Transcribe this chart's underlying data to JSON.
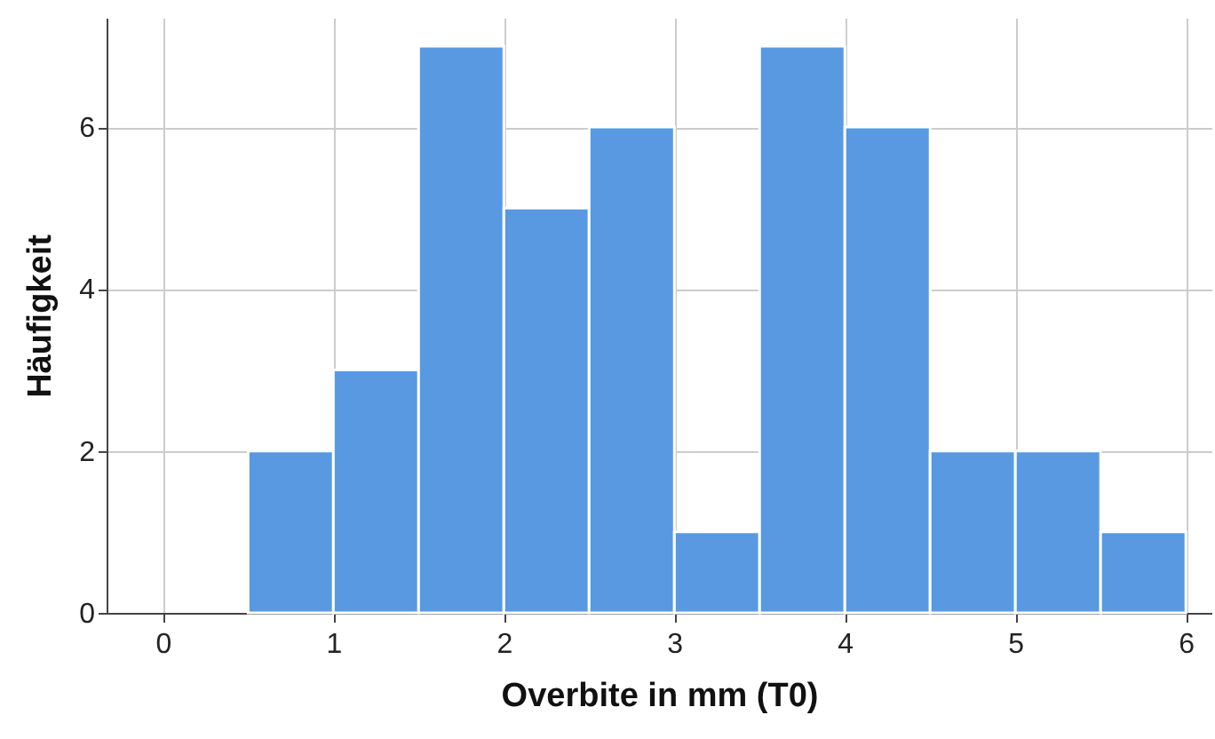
{
  "chart_data": {
    "type": "histogram",
    "xlabel": "Overbite in mm (T0)",
    "ylabel": "Häufigkeit",
    "bins": [
      0.5,
      1,
      1.5,
      2,
      2.5,
      3,
      3.5,
      4,
      4.5,
      5,
      5.5,
      6
    ],
    "values": [
      2,
      3,
      7,
      5,
      6,
      1,
      7,
      6,
      2,
      2,
      1
    ],
    "color": "#5899e2",
    "xlim": [
      -0.33,
      6.15
    ],
    "xticks": [
      0,
      1,
      2,
      3,
      4,
      5,
      6
    ],
    "ylim": [
      0,
      7.35
    ],
    "yticks": [
      0,
      2,
      4,
      6
    ],
    "grid": true
  }
}
